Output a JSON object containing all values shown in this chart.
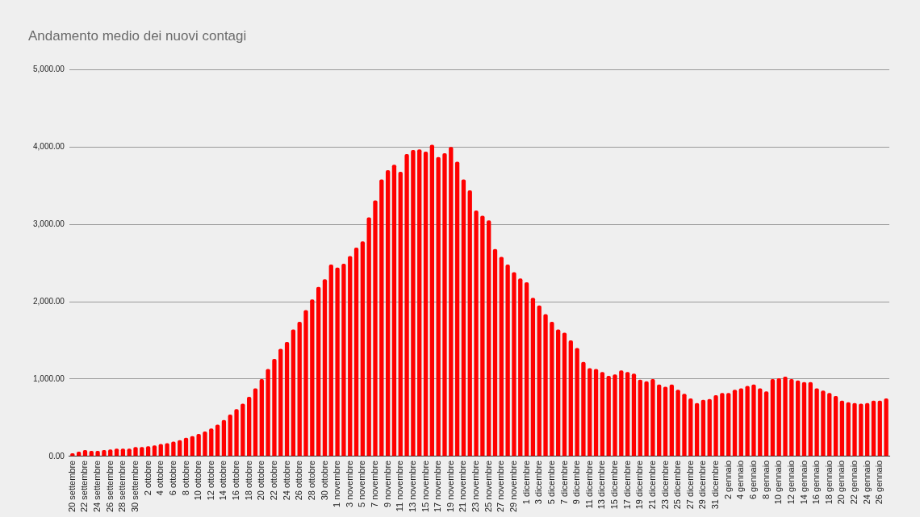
{
  "chart_data": {
    "type": "bar",
    "title": "Andamento medio dei nuovi contagi",
    "categories": [
      "20 settembre",
      null,
      "22 settembre",
      null,
      "24 settembre",
      null,
      "26 settembre",
      null,
      "28 settembre",
      null,
      "30 settembre",
      null,
      "2 ottobre",
      null,
      "4 ottobre",
      null,
      "6 ottobre",
      null,
      "8 ottobre",
      null,
      "10 ottobre",
      null,
      "12 ottobre",
      null,
      "14 ottobre",
      null,
      "16 ottobre",
      null,
      "18 ottobre",
      null,
      "20 ottobre",
      null,
      "22 ottobre",
      null,
      "24 ottobre",
      null,
      "26 ottobre",
      null,
      "28 ottobre",
      null,
      "30 ottobre",
      null,
      "1 novembre",
      null,
      "3 novembre",
      null,
      "5 novembre",
      null,
      "7 novembre",
      null,
      "9 novembre",
      null,
      "11 novembre",
      null,
      "13 novembre",
      null,
      "15 novembre",
      null,
      "17 novembre",
      null,
      "19 novembre",
      null,
      "21 novembre",
      null,
      "23 novembre",
      null,
      "25 novembre",
      null,
      "27 novembre",
      null,
      "29 novembre",
      null,
      "1 dicembre",
      null,
      "3 dicembre",
      null,
      "5 dicembre",
      null,
      "7 dicembre",
      null,
      "9 dicembre",
      null,
      "11 dicembre",
      null,
      "13 dicembre",
      null,
      "15 dicembre",
      null,
      "17 dicembre",
      null,
      "19 dicembre",
      null,
      "21 dicembre",
      null,
      "23 dicembre",
      null,
      "25 dicembre",
      null,
      "27 dicembre",
      null,
      "29 dicembre",
      null,
      "31 dicembre",
      null,
      "2 gennaio",
      null,
      "4 gennaio",
      null,
      "6 gennaio",
      null,
      "8 gennaio",
      null,
      "10 gennaio",
      null,
      "12 gennaio",
      null,
      "14 gennaio",
      null,
      "16 gennaio",
      null,
      "18 gennaio",
      null,
      "20 gennaio",
      null,
      "22 gennaio",
      null,
      "24 gennaio",
      null,
      "26 gennaio",
      null
    ],
    "values": [
      40,
      60,
      80,
      70,
      70,
      80,
      90,
      100,
      100,
      100,
      120,
      120,
      130,
      140,
      160,
      170,
      190,
      210,
      240,
      260,
      290,
      320,
      360,
      410,
      470,
      540,
      610,
      680,
      770,
      880,
      1000,
      1130,
      1260,
      1390,
      1480,
      1640,
      1740,
      1890,
      2030,
      2190,
      2290,
      2480,
      2440,
      2490,
      2590,
      2700,
      2780,
      3090,
      3310,
      3580,
      3700,
      3770,
      3680,
      3910,
      3960,
      3970,
      3940,
      4030,
      3870,
      3920,
      4000,
      3810,
      3580,
      3440,
      3180,
      3110,
      3050,
      2680,
      2580,
      2480,
      2380,
      2300,
      2250,
      2050,
      1950,
      1840,
      1740,
      1640,
      1600,
      1500,
      1400,
      1220,
      1140,
      1130,
      1090,
      1040,
      1060,
      1110,
      1090,
      1070,
      990,
      970,
      1000,
      930,
      900,
      930,
      860,
      810,
      750,
      690,
      730,
      740,
      790,
      820,
      820,
      860,
      880,
      910,
      930,
      880,
      840,
      1000,
      1010,
      1030,
      1000,
      980,
      960,
      960,
      880,
      850,
      820,
      780,
      720,
      700,
      690,
      680,
      690,
      720,
      720,
      750
    ],
    "color": "#ff0000",
    "ylim": [
      0,
      5000
    ],
    "yticks": [
      {
        "value": 0,
        "label": "0.00"
      },
      {
        "value": 1000,
        "label": "1,000.00"
      },
      {
        "value": 2000,
        "label": "2,000.00"
      },
      {
        "value": 3000,
        "label": "3,000.00"
      },
      {
        "value": 4000,
        "label": "4,000.00"
      },
      {
        "value": 5000,
        "label": "5,000.00"
      }
    ],
    "grid": "y"
  }
}
